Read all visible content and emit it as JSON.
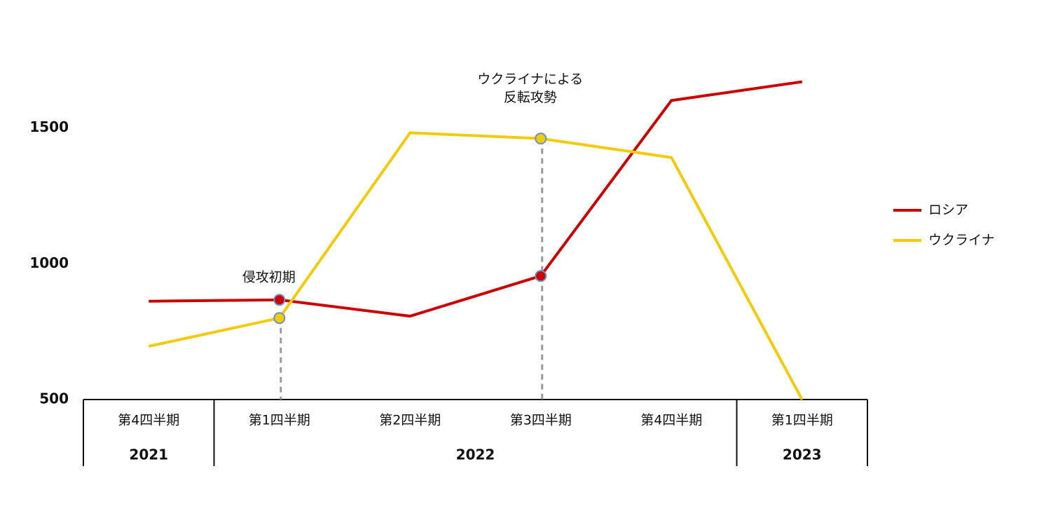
{
  "chart_data": {
    "type": "line",
    "categories": [
      "第4四半期",
      "第1四半期",
      "第2四半期",
      "第3四半期",
      "第4四半期",
      "第1四半期"
    ],
    "category_groups": [
      {
        "label": "2021",
        "count": 1
      },
      {
        "label": "2022",
        "count": 4
      },
      {
        "label": "2023",
        "count": 1
      }
    ],
    "series": [
      {
        "name": "ロシア",
        "color": "#cc0000",
        "values": [
          862,
          867,
          807,
          955,
          1601,
          1670
        ]
      },
      {
        "name": "ウクライナ",
        "color": "#f2cc0c",
        "values": [
          696,
          800,
          1482,
          1461,
          1391,
          500
        ]
      }
    ],
    "annotations": [
      {
        "lines": [
          "侵攻初期"
        ],
        "x": 1
      },
      {
        "lines": [
          "ウクライナによる",
          "反転攻勢"
        ],
        "x": 3
      }
    ],
    "ylim": [
      500,
      1700
    ],
    "yticks": [
      500,
      1000,
      1500
    ],
    "grid": false,
    "legend": "right"
  }
}
